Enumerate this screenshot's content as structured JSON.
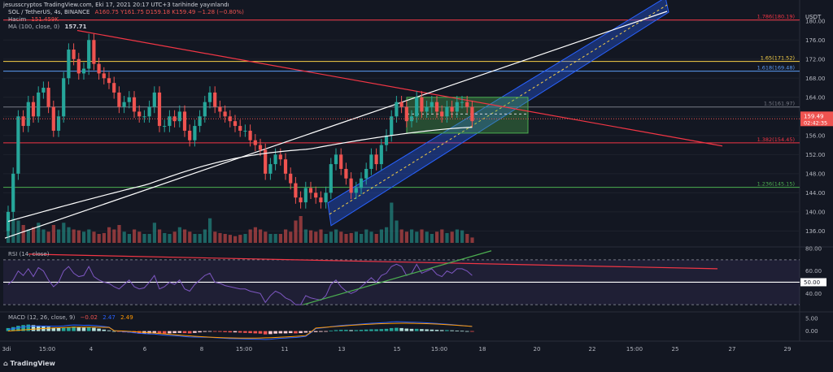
{
  "header": {
    "top": "jesusscryptos TradingView.com, Eki 17, 2021 20:17 UTC+3 tarihinde yayınlandı",
    "symbol": "SOL / TetherUS, 4s, BINANCE",
    "ohlc": "A160.75 Y161.75 D159.18 K159.49 −1.28 (−0.80%)",
    "volume_label": "Hacim",
    "volume_value": "151.459K",
    "ma_label": "MA (100, close, 0)",
    "ma_value": "157.71",
    "currency": "USDT"
  },
  "rsi_legend": {
    "label": "RSI (14, close)"
  },
  "macd_legend": {
    "label": "MACD (12, 26, close, 9)",
    "v1": "−0.02",
    "v2": "2.47",
    "v3": "2.49"
  },
  "footer": {
    "brand": "TradingView"
  },
  "colors": {
    "up": "#26a69a",
    "down": "#ef5350",
    "fib_red": "#f23645",
    "fib_yellow": "#f7d047",
    "fib_blue": "#5b9cf6",
    "fib_green": "#4caf50",
    "channel": "#2962ff",
    "rsi": "#7e57c2"
  },
  "chart_data": [
    {
      "type": "candlestick",
      "title": "SOL / TetherUS, 4s, BINANCE",
      "x_ticks": [
        "3di",
        "15:00",
        "4",
        "6",
        "8",
        "15:00",
        "11",
        "13",
        "15",
        "15:00",
        "18",
        "20",
        "22",
        "15:00",
        "25",
        "27",
        "29"
      ],
      "y_ticks": [
        136,
        140,
        144,
        148,
        152,
        156,
        160,
        164,
        168,
        172,
        176,
        180
      ],
      "ylim": [
        133,
        182
      ],
      "price_levels": [
        {
          "label": "1.786(180.19)",
          "value": 180.19,
          "color": "#f23645"
        },
        {
          "label": "1.65(171.52)",
          "value": 171.52,
          "color": "#f7d047"
        },
        {
          "label": "1.618(169.48)",
          "value": 169.48,
          "color": "#5b9cf6"
        },
        {
          "label": "1.5(161.97)",
          "value": 161.97,
          "color": "#787b86"
        },
        {
          "label": "1.382(154.45)",
          "value": 154.45,
          "color": "#f23645"
        },
        {
          "label": "1.236(145.15)",
          "value": 145.15,
          "color": "#4caf50"
        }
      ],
      "last_price": {
        "value": "159.49",
        "countdown": "02:42:35"
      },
      "closes": [
        140,
        148,
        160,
        158,
        163,
        160,
        165,
        166,
        162,
        157,
        160,
        168,
        174,
        172,
        169,
        170,
        176,
        171,
        169,
        168,
        167,
        165,
        162,
        163,
        164,
        161,
        160,
        160,
        162,
        165,
        158,
        158,
        160,
        159,
        161,
        157,
        155,
        158,
        160,
        163,
        165,
        162,
        161,
        160,
        159,
        158,
        157,
        157,
        155,
        154,
        153,
        148,
        150,
        152,
        151,
        148,
        146,
        143,
        142,
        145,
        144,
        143,
        142,
        144,
        150,
        152,
        149,
        147,
        144,
        145,
        147,
        149,
        152,
        150,
        154,
        156,
        160,
        163,
        162,
        159,
        160,
        164,
        161,
        162,
        163,
        161,
        160,
        162,
        161,
        163,
        163,
        162,
        159
      ],
      "volume": [
        0.35,
        0.55,
        0.5,
        0.4,
        0.3,
        0.35,
        0.45,
        0.3,
        0.25,
        0.4,
        0.3,
        0.45,
        0.35,
        0.3,
        0.28,
        0.25,
        0.3,
        0.25,
        0.2,
        0.22,
        0.35,
        0.3,
        0.4,
        0.25,
        0.2,
        0.3,
        0.25,
        0.2,
        0.2,
        0.45,
        0.3,
        0.22,
        0.2,
        0.25,
        0.35,
        0.3,
        0.25,
        0.2,
        0.2,
        0.3,
        0.55,
        0.25,
        0.22,
        0.2,
        0.18,
        0.15,
        0.18,
        0.2,
        0.3,
        0.35,
        0.3,
        0.25,
        0.2,
        0.2,
        0.2,
        0.3,
        0.25,
        0.5,
        0.6,
        0.3,
        0.28,
        0.25,
        0.3,
        0.2,
        0.25,
        0.3,
        0.25,
        0.2,
        0.22,
        0.25,
        0.2,
        0.3,
        0.25,
        0.2,
        0.3,
        0.35,
        0.9,
        0.5,
        0.3,
        0.25,
        0.3,
        0.25,
        0.3,
        0.25,
        0.2,
        0.25,
        0.3,
        0.22,
        0.25,
        0.3,
        0.28,
        0.2,
        0.12
      ],
      "ma100_end_value": 157.71
    },
    {
      "type": "line",
      "title": "RSI (14, close)",
      "y_ticks": [
        40,
        50,
        60,
        80
      ],
      "ylim": [
        25,
        80
      ],
      "current_label": "50.00",
      "values": [
        48,
        52,
        60,
        56,
        62,
        55,
        63,
        60,
        52,
        46,
        50,
        60,
        64,
        58,
        55,
        56,
        64,
        55,
        52,
        50,
        49,
        46,
        44,
        48,
        52,
        46,
        44,
        45,
        50,
        56,
        44,
        46,
        50,
        48,
        52,
        44,
        42,
        48,
        52,
        56,
        58,
        50,
        49,
        47,
        46,
        45,
        44,
        44,
        42,
        41,
        40,
        32,
        38,
        42,
        40,
        36,
        34,
        30,
        30,
        38,
        36,
        35,
        34,
        38,
        48,
        52,
        46,
        42,
        40,
        42,
        46,
        50,
        54,
        50,
        56,
        58,
        64,
        66,
        64,
        56,
        58,
        66,
        58,
        60,
        62,
        57,
        55,
        60,
        58,
        62,
        62,
        60,
        56
      ]
    },
    {
      "type": "line",
      "title": "MACD (12, 26, close, 9)",
      "y_ticks": [
        0.0,
        5.0
      ],
      "y_tick_labels": [
        "0.00",
        "5.00"
      ],
      "ylim": [
        -4,
        7
      ],
      "hist": [
        1.2,
        1.6,
        2.1,
        2.4,
        2.6,
        2.4,
        2.2,
        2.0,
        1.7,
        1.4,
        1.2,
        1.3,
        1.6,
        1.8,
        1.6,
        1.4,
        1.5,
        1.3,
        1.0,
        0.6,
        0.3,
        0.0,
        -0.3,
        -0.5,
        -0.6,
        -0.8,
        -1.0,
        -1.0,
        -0.9,
        -0.7,
        -0.9,
        -1.0,
        -0.9,
        -0.8,
        -0.7,
        -0.8,
        -0.9,
        -0.7,
        -0.5,
        -0.3,
        -0.1,
        -0.2,
        -0.3,
        -0.4,
        -0.5,
        -0.5,
        -0.6,
        -0.7,
        -0.8,
        -0.9,
        -1.0,
        -1.3,
        -1.2,
        -1.0,
        -0.9,
        -0.9,
        -0.8,
        -0.9,
        -0.8,
        -0.6,
        -0.5,
        -0.4,
        -0.3,
        -0.2,
        0.2,
        0.4,
        0.5,
        0.5,
        0.4,
        0.4,
        0.5,
        0.6,
        0.7,
        0.7,
        0.8,
        0.9,
        1.2,
        1.3,
        1.2,
        1.0,
        0.9,
        0.9,
        0.8,
        0.7,
        0.6,
        0.5,
        0.4,
        0.4,
        0.3,
        0.2,
        0.1,
        0.0,
        -0.02
      ]
    }
  ]
}
